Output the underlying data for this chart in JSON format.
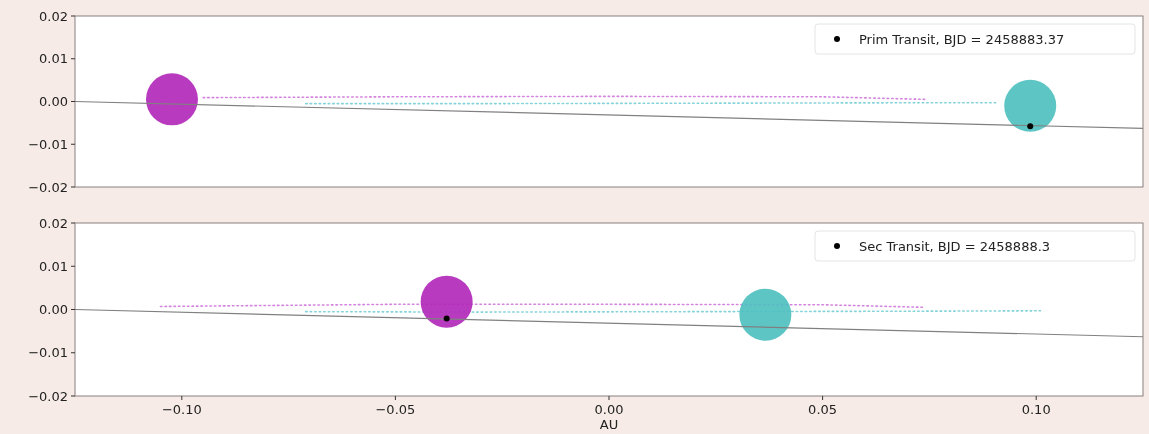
{
  "chart_data": [
    {
      "type": "scatter",
      "xlim": [
        -0.125,
        0.125
      ],
      "tick_labels": "y",
      "ylim": [
        -0.02,
        0.02
      ],
      "yticks": [
        {
          "value": -0.02,
          "label": "−0.02"
        },
        {
          "value": -0.01,
          "label": "−0.01"
        },
        {
          "value": 0,
          "label": "0.00"
        },
        {
          "value": 0.01,
          "label": "0.01"
        },
        {
          "value": 0.02,
          "label": "0.02"
        }
      ],
      "grid": false,
      "legend": "top right",
      "series": [
        {
          "type": "line",
          "line_style": "dotted",
          "color": "#c050d0",
          "x": [
            -0.095,
            -0.05,
            0,
            0.05,
            0.074
          ],
          "values": [
            0.0009,
            0.0011,
            0.0012,
            0.0011,
            0.0005
          ]
        },
        {
          "type": "line",
          "line_style": "dotted",
          "color": "#50c0c8",
          "x": [
            -0.071,
            -0.03,
            0.02,
            0.07,
            0.091
          ],
          "values": [
            -0.0005,
            -0.0005,
            -0.0004,
            -0.0003,
            -0.0003
          ]
        },
        {
          "type": "bubble",
          "color": "#b026b8",
          "x": [
            -0.1023
          ],
          "values": [
            0.0005
          ],
          "sizes": [
            1
          ]
        },
        {
          "type": "bubble",
          "color": "#4dbfbf",
          "x": [
            0.0986
          ],
          "values": [
            -0.001
          ],
          "sizes": [
            1
          ]
        },
        {
          "type": "line",
          "line_style": "solid",
          "color": "#808080",
          "x": [
            -0.125,
            0.125
          ],
          "values": [
            0,
            -0.0063
          ]
        },
        {
          "name": "Prim Transit, BJD = 2458883.37",
          "marker": "circle",
          "color": "#000000",
          "x": [
            0.0986
          ],
          "values": [
            -0.0058
          ]
        }
      ]
    },
    {
      "type": "scatter",
      "xlabel": "AU",
      "xlim": [
        -0.125,
        0.125
      ],
      "xticks": [
        {
          "value": -0.1,
          "label": "−0.10"
        },
        {
          "value": -0.05,
          "label": "−0.05"
        },
        {
          "value": 0,
          "label": "0.00"
        },
        {
          "value": 0.05,
          "label": "0.05"
        },
        {
          "value": 0.1,
          "label": "0.10"
        }
      ],
      "ylim": [
        -0.02,
        0.02
      ],
      "yticks": [
        {
          "value": -0.02,
          "label": "−0.02"
        },
        {
          "value": -0.01,
          "label": "−0.01"
        },
        {
          "value": 0,
          "label": "0.00"
        },
        {
          "value": 0.01,
          "label": "0.01"
        },
        {
          "value": 0.02,
          "label": "0.02"
        }
      ],
      "grid": false,
      "legend": "top right",
      "series": [
        {
          "type": "line",
          "line_style": "dotted",
          "color": "#c050d0",
          "x": [
            -0.105,
            -0.05,
            0,
            0.05,
            0.074
          ],
          "values": [
            0.0007,
            0.0012,
            0.0012,
            0.0011,
            0.0005
          ]
        },
        {
          "type": "line",
          "line_style": "dotted",
          "color": "#50c0c8",
          "x": [
            -0.071,
            -0.03,
            0.02,
            0.07,
            0.101
          ],
          "values": [
            -0.0005,
            -0.0006,
            -0.0005,
            -0.0004,
            -0.0003
          ]
        },
        {
          "type": "bubble",
          "color": "#b026b8",
          "x": [
            -0.038
          ],
          "values": [
            0.0018
          ],
          "sizes": [
            1
          ]
        },
        {
          "type": "bubble",
          "color": "#4dbfbf",
          "x": [
            0.0366
          ],
          "values": [
            -0.0012
          ],
          "sizes": [
            1
          ]
        },
        {
          "type": "line",
          "line_style": "solid",
          "color": "#808080",
          "x": [
            -0.125,
            0.125
          ],
          "values": [
            0,
            -0.0063
          ]
        },
        {
          "name": "Sec Transit, BJD = 2458888.3",
          "marker": "circle",
          "color": "#000000",
          "x": [
            -0.038
          ],
          "values": [
            -0.0021
          ]
        }
      ]
    }
  ]
}
